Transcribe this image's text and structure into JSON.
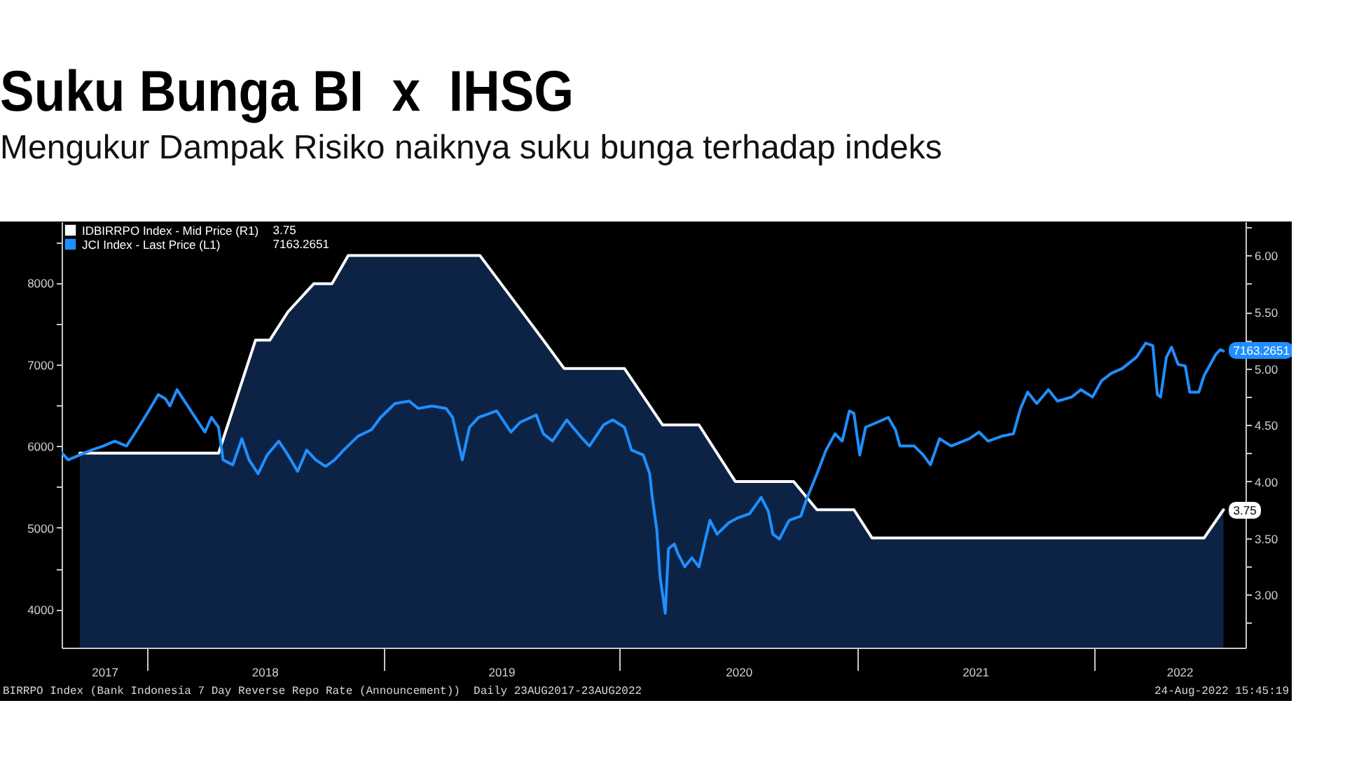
{
  "chart_data": {
    "type": "line",
    "title": "Suku Bunga BI  x  IHSG",
    "subtitle": "Mengukur Dampak Risiko naiknya suku bunga terhadap indeks",
    "xlim": [
      "2017-08-23",
      "2022-08-23"
    ],
    "xticks": [
      {
        "value": "2017-10-28",
        "label": "2017"
      },
      {
        "value": "2018-01-01",
        "label": null
      },
      {
        "value": "2018-07-02",
        "label": "2018"
      },
      {
        "value": "2019-01-01",
        "label": null
      },
      {
        "value": "2019-07-02",
        "label": "2019"
      },
      {
        "value": "2020-01-01",
        "label": null
      },
      {
        "value": "2020-07-02",
        "label": "2020"
      },
      {
        "value": "2021-01-01",
        "label": null
      },
      {
        "value": "2021-07-02",
        "label": "2021"
      },
      {
        "value": "2022-01-01",
        "label": null
      },
      {
        "value": "2022-05-13",
        "label": "2022"
      }
    ],
    "ylim": [
      3530,
      8750
    ],
    "yticks": [
      4000,
      {
        "value": 4500,
        "label": null
      },
      5000,
      {
        "value": 5500,
        "label": null
      },
      6000,
      {
        "value": 6500,
        "label": null
      },
      7000,
      {
        "value": 7500,
        "label": null
      },
      8000,
      {
        "value": 8500,
        "label": null
      }
    ],
    "y2lim": [
      2.53,
      6.3
    ],
    "y2ticks": [
      {
        "value": 2.75,
        "label": null
      },
      {
        "value": 3,
        "label": "3.00"
      },
      {
        "value": 3.25,
        "label": null
      },
      {
        "value": 3.5,
        "label": "3.50"
      },
      {
        "value": 3.75,
        "label": null
      },
      {
        "value": 4,
        "label": "4.00"
      },
      {
        "value": 4.25,
        "label": null
      },
      {
        "value": 4.5,
        "label": "4.50"
      },
      {
        "value": 4.75,
        "label": null
      },
      {
        "value": 5,
        "label": "5.00"
      },
      {
        "value": 5.25,
        "label": null
      },
      {
        "value": 5.5,
        "label": "5.50"
      },
      {
        "value": 5.75,
        "label": null
      },
      {
        "value": 6,
        "label": "6.00"
      },
      {
        "value": 6.25,
        "label": null
      }
    ],
    "legend": "top left",
    "series": [
      {
        "name": "IDBIRRPO Index - Mid Price (R1)",
        "type": "area",
        "axis": "y2",
        "color": "#ffffff",
        "x": [
          "2017-09-20",
          "2018-04-22",
          "2018-06-18",
          "2018-07-10",
          "2018-08-07",
          "2018-09-16",
          "2018-10-14",
          "2018-11-08",
          "2019-05-30",
          "2019-09-05",
          "2019-10-07",
          "2020-01-08",
          "2020-03-07",
          "2020-05-02",
          "2020-06-27",
          "2020-09-25",
          "2020-10-31",
          "2020-12-27",
          "2021-01-24",
          "2022-06-20",
          "2022-07-20"
        ],
        "values": [
          4.25,
          4.25,
          5.25,
          5.25,
          5.5,
          5.75,
          5.75,
          6,
          6,
          5.25,
          5,
          5,
          4.5,
          4.5,
          4,
          4,
          3.75,
          3.75,
          3.5,
          3.5,
          3.75
        ],
        "value_labels": [
          null,
          null,
          null,
          null,
          null,
          null,
          null,
          null,
          null,
          null,
          null,
          null,
          null,
          null,
          null,
          null,
          null,
          null,
          null,
          null,
          "3.75"
        ]
      },
      {
        "name": "JCI Index - Last Price (L1)",
        "color": "#1f8fff",
        "x": [
          "2017-08-23",
          "2017-09-02",
          "2017-09-20",
          "2017-10-08",
          "2017-10-26",
          "2017-11-13",
          "2017-12-01",
          "2017-12-15",
          "2018-01-02",
          "2018-01-19",
          "2018-01-30",
          "2018-02-06",
          "2018-02-17",
          "2018-03-03",
          "2018-03-17",
          "2018-04-01",
          "2018-04-11",
          "2018-04-22",
          "2018-04-29",
          "2018-05-14",
          "2018-05-28",
          "2018-06-08",
          "2018-06-22",
          "2018-07-06",
          "2018-07-24",
          "2018-08-07",
          "2018-08-22",
          "2018-09-05",
          "2018-09-19",
          "2018-10-04",
          "2018-10-18",
          "2018-11-01",
          "2018-11-23",
          "2018-12-14",
          "2018-12-28",
          "2019-01-19",
          "2019-02-10",
          "2019-02-24",
          "2019-03-17",
          "2019-04-08",
          "2019-04-18",
          "2019-05-03",
          "2019-05-14",
          "2019-05-28",
          "2019-06-25",
          "2019-07-17",
          "2019-07-31",
          "2019-08-25",
          "2019-09-05",
          "2019-09-19",
          "2019-10-11",
          "2019-11-01",
          "2019-11-15",
          "2019-12-07",
          "2019-12-21",
          "2020-01-08",
          "2020-01-19",
          "2020-02-06",
          "2020-02-16",
          "2020-02-20",
          "2020-02-27",
          "2020-03-03",
          "2020-03-11",
          "2020-03-16",
          "2020-03-25",
          "2020-03-30",
          "2020-04-10",
          "2020-04-21",
          "2020-05-02",
          "2020-05-12",
          "2020-05-19",
          "2020-05-30",
          "2020-06-17",
          "2020-07-01",
          "2020-07-19",
          "2020-08-06",
          "2020-08-17",
          "2020-08-24",
          "2020-09-03",
          "2020-09-18",
          "2020-10-06",
          "2020-10-16",
          "2020-10-31",
          "2020-11-14",
          "2020-11-28",
          "2020-12-09",
          "2020-12-20",
          "2020-12-27",
          "2021-01-05",
          "2021-01-14",
          "2021-02-01",
          "2021-02-18",
          "2021-03-01",
          "2021-03-08",
          "2021-03-30",
          "2021-04-13",
          "2021-04-24",
          "2021-05-08",
          "2021-05-26",
          "2021-06-23",
          "2021-07-08",
          "2021-07-22",
          "2021-08-12",
          "2021-08-30",
          "2021-09-10",
          "2021-09-21",
          "2021-10-05",
          "2021-10-23",
          "2021-11-06",
          "2021-11-28",
          "2021-12-12",
          "2021-12-30",
          "2022-01-13",
          "2022-01-28",
          "2022-02-14",
          "2022-03-08",
          "2022-03-22",
          "2022-04-02",
          "2022-04-09",
          "2022-04-14",
          "2022-04-23",
          "2022-05-01",
          "2022-05-11",
          "2022-05-22",
          "2022-05-29",
          "2022-06-12",
          "2022-06-20",
          "2022-07-08",
          "2022-07-15",
          "2022-07-20"
        ],
        "values": [
          5920,
          5830,
          5890,
          5950,
          6000,
          6060,
          6000,
          6170,
          6400,
          6630,
          6580,
          6490,
          6690,
          6520,
          6350,
          6170,
          6350,
          6230,
          5830,
          5770,
          6090,
          5830,
          5660,
          5890,
          6060,
          5890,
          5690,
          5950,
          5830,
          5750,
          5830,
          5950,
          6120,
          6200,
          6350,
          6520,
          6550,
          6460,
          6490,
          6460,
          6350,
          5830,
          6230,
          6350,
          6430,
          6170,
          6290,
          6380,
          6150,
          6060,
          6320,
          6120,
          6000,
          6260,
          6320,
          6230,
          5950,
          5890,
          5660,
          5370,
          4970,
          4400,
          3950,
          4740,
          4800,
          4690,
          4520,
          4630,
          4520,
          4860,
          5090,
          4920,
          5060,
          5120,
          5170,
          5370,
          5200,
          4920,
          4860,
          5090,
          5140,
          5370,
          5660,
          5950,
          6150,
          6060,
          6430,
          6400,
          5890,
          6230,
          6290,
          6350,
          6200,
          6000,
          6000,
          5890,
          5770,
          6090,
          6000,
          6090,
          6170,
          6060,
          6120,
          6150,
          6460,
          6660,
          6520,
          6690,
          6550,
          6600,
          6690,
          6600,
          6800,
          6890,
          6950,
          7090,
          7260,
          7230,
          6630,
          6600,
          7090,
          7210,
          7000,
          6980,
          6660,
          6660,
          6860,
          7120,
          7180,
          7163.2651
        ],
        "value_labels": [
          null,
          null,
          null,
          null,
          null,
          null,
          null,
          null,
          null,
          null,
          null,
          null,
          null,
          null,
          null,
          null,
          null,
          null,
          null,
          null,
          null,
          null,
          null,
          null,
          null,
          null,
          null,
          null,
          null,
          null,
          null,
          null,
          null,
          null,
          null,
          null,
          null,
          null,
          null,
          null,
          null,
          null,
          null,
          null,
          null,
          null,
          null,
          null,
          null,
          null,
          null,
          null,
          null,
          null,
          null,
          null,
          null,
          null,
          null,
          null,
          null,
          null,
          null,
          null,
          null,
          null,
          null,
          null,
          null,
          null,
          null,
          null,
          null,
          null,
          null,
          null,
          null,
          null,
          null,
          null,
          null,
          null,
          null,
          null,
          null,
          null,
          null,
          null,
          null,
          null,
          null,
          null,
          null,
          null,
          null,
          null,
          null,
          null,
          null,
          null,
          null,
          null,
          null,
          null,
          null,
          null,
          null,
          null,
          null,
          null,
          null,
          null,
          null,
          null,
          null,
          null,
          null,
          null,
          null,
          null,
          null,
          null,
          null,
          null,
          null,
          null,
          null,
          null,
          null,
          "7163.2651"
        ]
      }
    ],
    "annotations": [
      "BIRRPO Index (Bank Indonesia 7 Day Reverse Repo Rate (Announcement))  Daily 23AUG2017-23AUG2022",
      "24-Aug-2022 15:45:19"
    ]
  }
}
